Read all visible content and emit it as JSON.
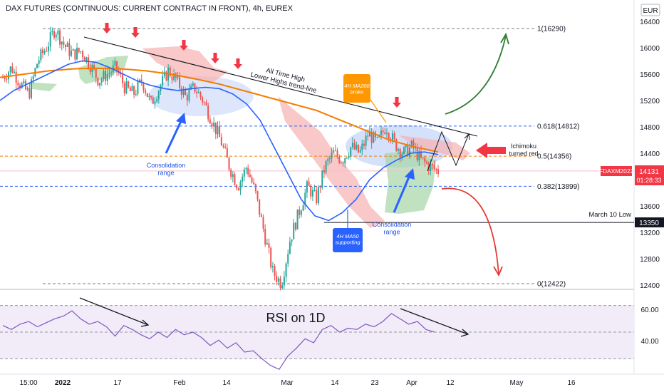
{
  "header": {
    "title": "DAX FUTURES (CONTINUOUS: CURRENT CONTRACT IN FRONT), 4h, EUREX"
  },
  "currency_badge": "EUR",
  "price_tag": {
    "symbol": "FDAXM2022",
    "price": "14131",
    "countdown": "01:28:33",
    "color": "#f23645"
  },
  "march_low_tag": {
    "label": "March 10 Low",
    "price": "13350"
  },
  "rsi_panel": {
    "label": "RSI on 1D",
    "ticks": [
      "60.00",
      "40.00"
    ]
  },
  "annotations": {
    "ath_line": "All Time High\nLower Highs trend-line",
    "consolidation_1": "Consolidation\nrange",
    "consolidation_2": "Consolidation\nrange",
    "ma200_broke": "4H MA200\nbroke",
    "ma50_support": "4H MA50\nsupporting",
    "ichimoku": "Ichimoku\nturned red"
  },
  "colors": {
    "up": "#26a69a",
    "down": "#ef5350",
    "ma50": "#2962ff",
    "ma200": "#f57c00",
    "cloud_red": "#f6b0b0",
    "cloud_green": "#a5d6a7",
    "fib": "#2962ff",
    "fib_mid": "#f57c00",
    "ellipse": "#b3c7f7",
    "rsi_line": "#7e57c2",
    "rsi_bg": "#ede7f6",
    "arrow_up": "#2e7d32",
    "arrow_down": "#e53935",
    "marker": "#f23645"
  },
  "chart_data": {
    "type": "candlestick",
    "title": "DAX FUTURES (CONTINUOUS: CURRENT CONTRACT IN FRONT), 4h, EUREX",
    "ylim": [
      12400,
      16450
    ],
    "y_ticks": [
      16400,
      16000,
      15600,
      15200,
      14800,
      14400,
      14000,
      13600,
      13200,
      12800,
      12400
    ],
    "x_ticks": [
      "15:00",
      "2022",
      "17",
      "Feb",
      "14",
      "Mar",
      "14",
      "23",
      "Apr",
      "12",
      "May",
      "16"
    ],
    "fib_levels": [
      {
        "label": "1(16290)",
        "value": 16290
      },
      {
        "label": "0.618(14812)",
        "value": 14812
      },
      {
        "label": "0.5(14356)",
        "value": 14356
      },
      {
        "label": "0.382(13899)",
        "value": 13899
      },
      {
        "label": "0(12422)",
        "value": 12422
      }
    ],
    "horizontal_levels": [
      {
        "label": "March 10 Low",
        "value": 13350
      },
      {
        "label": "FDAXM2022",
        "value": 14131
      }
    ],
    "price_path": [
      15550,
      15700,
      15450,
      15300,
      15800,
      16000,
      16290,
      16050,
      15900,
      15950,
      15750,
      15500,
      15600,
      15700,
      15400,
      15300,
      15500,
      15150,
      15400,
      15650,
      15500,
      15250,
      15400,
      15200,
      14900,
      14600,
      14200,
      13900,
      14200,
      13800,
      13200,
      12600,
      12422,
      13100,
      13500,
      13900,
      13700,
      14200,
      14400,
      14300,
      14500,
      14400,
      14700,
      14550,
      14812,
      14550,
      14400,
      14500,
      14300,
      14200,
      14131
    ],
    "ma50_path": [
      15200,
      15350,
      15450,
      15550,
      15650,
      15750,
      15800,
      15780,
      15700,
      15600,
      15500,
      15430,
      15380,
      15350,
      15380,
      15400,
      15380,
      15300,
      15150,
      14900,
      14500,
      14100,
      13700,
      13450,
      13380,
      13500,
      13700,
      14000,
      14180,
      14300,
      14400,
      14420,
      14380
    ],
    "ma200_path": [
      15550,
      15600,
      15650,
      15680,
      15690,
      15680,
      15650,
      15600,
      15530,
      15450,
      15350,
      15250,
      15150,
      15050,
      14900,
      14750,
      14600,
      14500,
      14420
    ],
    "rsi_ylim": [
      20,
      80
    ],
    "rsi_path": [
      55,
      52,
      56,
      58,
      54,
      57,
      60,
      62,
      66,
      60,
      56,
      58,
      54,
      47,
      55,
      52,
      48,
      45,
      50,
      46,
      52,
      48,
      50,
      46,
      40,
      44,
      38,
      42,
      35,
      36,
      30,
      25,
      22,
      32,
      38,
      45,
      42,
      52,
      55,
      50,
      53,
      52,
      56,
      54,
      58,
      64,
      60,
      56,
      58,
      52,
      50
    ]
  }
}
